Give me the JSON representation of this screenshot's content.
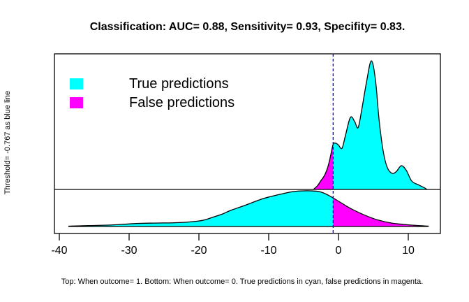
{
  "title": "Classification: AUC= 0.88, Sensitivity= 0.93, Specifity= 0.83.",
  "y_axis_label": "Threshold= -0.767 as blue line",
  "caption": "Top: When outcome= 1. Bottom: When outcome= 0. True predictions in cyan, false predictions in magenta.",
  "legend": {
    "items": [
      {
        "label": "True predictions",
        "color": "#00ffff"
      },
      {
        "label": "False predictions",
        "color": "#ff00ff"
      }
    ]
  },
  "colors": {
    "true_fill": "#00ffff",
    "false_fill": "#ff00ff",
    "threshold_line": "#0000ff",
    "curve_outline": "#000000",
    "background": "#ffffff"
  },
  "chart_data": {
    "type": "area",
    "title": "Classification: AUC= 0.88, Sensitivity= 0.93, Specifity= 0.83.",
    "xlabel": "",
    "ylabel": "Threshold= -0.767 as blue line",
    "x_ticks": [
      -40,
      -30,
      -20,
      -10,
      0,
      10
    ],
    "xlim": [
      -40.7,
      14.6
    ],
    "threshold": -0.767,
    "legend_position": "top-left",
    "grid": false,
    "metrics": {
      "auc": 0.88,
      "sensitivity": 0.93,
      "specificity": 0.83
    },
    "panels": [
      {
        "name": "outcome_1",
        "description": "Top: When outcome= 1",
        "fill_left_of_threshold": "#ff00ff",
        "fill_right_of_threshold": "#00ffff",
        "points": [
          [
            -3.6,
            0
          ],
          [
            -3,
            0.03
          ],
          [
            -2.5,
            0.07
          ],
          [
            -2,
            0.11
          ],
          [
            -1.5,
            0.18
          ],
          [
            -1.1,
            0.27
          ],
          [
            -0.767,
            0.35
          ],
          [
            -0.4,
            0.36
          ],
          [
            0,
            0.345
          ],
          [
            0.5,
            0.32
          ],
          [
            1,
            0.42
          ],
          [
            1.7,
            0.56
          ],
          [
            2.3,
            0.53
          ],
          [
            2.8,
            0.48
          ],
          [
            3.3,
            0.61
          ],
          [
            4,
            0.83
          ],
          [
            4.7,
            1
          ],
          [
            5.3,
            0.85
          ],
          [
            5.8,
            0.55
          ],
          [
            6.4,
            0.3
          ],
          [
            7,
            0.17
          ],
          [
            7.7,
            0.125
          ],
          [
            8.3,
            0.14
          ],
          [
            9,
            0.185
          ],
          [
            9.7,
            0.15
          ],
          [
            10.5,
            0.065
          ],
          [
            11.5,
            0.035
          ],
          [
            12.2,
            0.016
          ],
          [
            12.7,
            0
          ]
        ]
      },
      {
        "name": "outcome_0",
        "description": "Bottom: When outcome= 0",
        "fill_left_of_threshold": "#00ffff",
        "fill_right_of_threshold": "#ff00ff",
        "points": [
          [
            -38.7,
            0.01
          ],
          [
            -37,
            0.02
          ],
          [
            -35,
            0.03
          ],
          [
            -33,
            0.04
          ],
          [
            -31,
            0.06
          ],
          [
            -29,
            0.085
          ],
          [
            -27,
            0.095
          ],
          [
            -25,
            0.1
          ],
          [
            -23.5,
            0.105
          ],
          [
            -21.5,
            0.125
          ],
          [
            -19.5,
            0.17
          ],
          [
            -18,
            0.26
          ],
          [
            -16.5,
            0.36
          ],
          [
            -15.5,
            0.45
          ],
          [
            -14,
            0.55
          ],
          [
            -12.5,
            0.66
          ],
          [
            -11,
            0.77
          ],
          [
            -9.5,
            0.85
          ],
          [
            -8,
            0.92
          ],
          [
            -6.5,
            0.98
          ],
          [
            -5,
            1
          ],
          [
            -4,
            1
          ],
          [
            -2.8,
            0.98
          ],
          [
            -2,
            0.93
          ],
          [
            -1.4,
            0.87
          ],
          [
            -0.767,
            0.8
          ],
          [
            0,
            0.71
          ],
          [
            1.5,
            0.53
          ],
          [
            2.5,
            0.43
          ],
          [
            3.5,
            0.34
          ],
          [
            4.5,
            0.26
          ],
          [
            5.5,
            0.19
          ],
          [
            6.5,
            0.14
          ],
          [
            7.5,
            0.1
          ],
          [
            8.5,
            0.075
          ],
          [
            9.5,
            0.055
          ],
          [
            10.5,
            0.04
          ],
          [
            11.5,
            0.025
          ],
          [
            12.8,
            0.012
          ],
          [
            12.9,
            0
          ]
        ]
      }
    ]
  }
}
